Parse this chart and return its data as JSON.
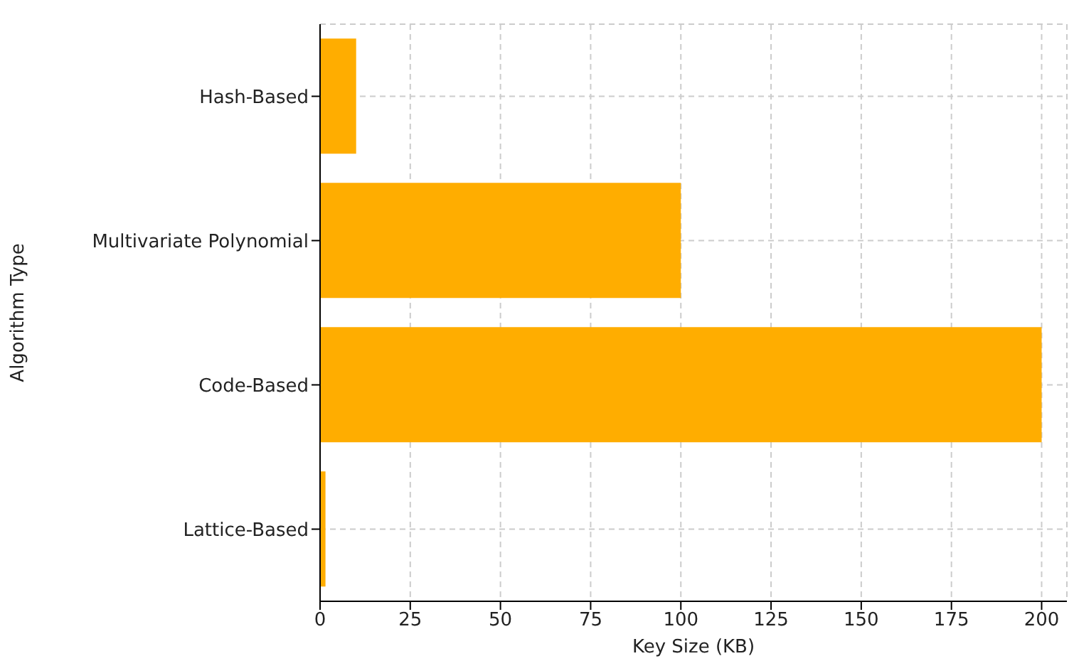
{
  "chart_data": {
    "type": "bar",
    "orientation": "horizontal",
    "xlabel": "Key Size (KB)",
    "ylabel": "Algorithm Type",
    "categories": [
      "Hash-Based",
      "Multivariate Polynomial",
      "Code-Based",
      "Lattice-Based"
    ],
    "values": [
      10,
      100,
      200,
      1.5
    ],
    "color": "#ffad00",
    "xlim": [
      0,
      207
    ],
    "xticks": [
      0,
      25,
      50,
      75,
      100,
      125,
      150,
      175,
      200
    ],
    "grid": true
  }
}
